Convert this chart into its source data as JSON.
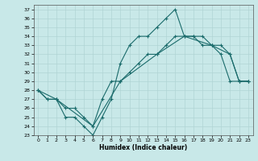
{
  "xlabel": "Humidex (Indice chaleur)",
  "bg_color": "#c8e8e8",
  "grid_color": "#b0d4d4",
  "line_color": "#1a6b6b",
  "xlim": [
    -0.5,
    23.5
  ],
  "ylim": [
    23,
    37.5
  ],
  "xticks": [
    0,
    1,
    2,
    3,
    4,
    5,
    6,
    7,
    8,
    9,
    10,
    11,
    12,
    13,
    14,
    15,
    16,
    17,
    18,
    19,
    20,
    21,
    22,
    23
  ],
  "yticks": [
    23,
    24,
    25,
    26,
    27,
    28,
    29,
    30,
    31,
    32,
    33,
    34,
    35,
    36,
    37
  ],
  "line1_x": [
    0,
    1,
    2,
    3,
    4,
    5,
    6,
    7,
    8,
    9,
    10,
    11,
    12,
    13,
    14,
    15,
    16,
    17,
    18,
    19,
    20,
    21,
    22,
    23
  ],
  "line1_y": [
    28,
    27,
    27,
    25,
    25,
    24,
    23,
    25,
    27,
    31,
    33,
    34,
    34,
    35,
    36,
    37,
    34,
    34,
    33,
    33,
    32,
    29,
    29,
    29
  ],
  "line2_x": [
    0,
    1,
    2,
    3,
    4,
    5,
    6,
    7,
    8,
    9,
    10,
    11,
    12,
    13,
    14,
    15,
    16,
    17,
    18,
    19,
    20,
    21,
    22,
    23
  ],
  "line2_y": [
    28,
    27,
    27,
    26,
    26,
    25,
    24,
    27,
    29,
    29,
    30,
    31,
    32,
    32,
    33,
    34,
    34,
    34,
    34,
    33,
    33,
    32,
    29,
    29
  ],
  "line3_x": [
    0,
    2,
    6,
    9,
    13,
    16,
    19,
    21,
    22,
    23
  ],
  "line3_y": [
    28,
    27,
    24,
    29,
    32,
    34,
    33,
    32,
    29,
    29
  ]
}
